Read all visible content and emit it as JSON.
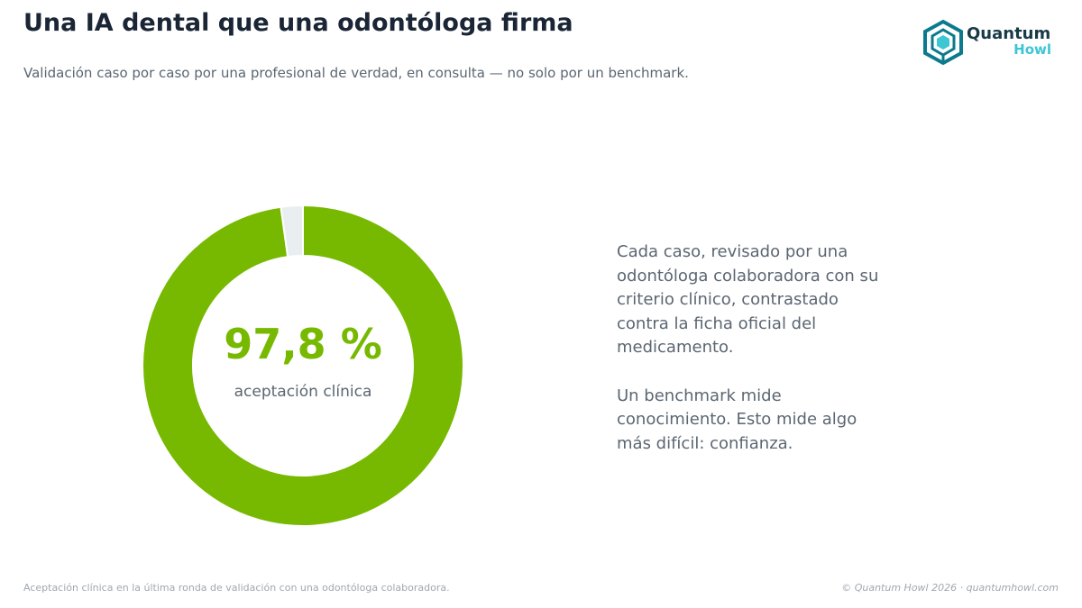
{
  "header": {
    "title": "Una IA dental que una odontóloga firma",
    "subtitle": "Validación caso por caso por una profesional de verdad, en consulta — no solo por un benchmark."
  },
  "logo": {
    "word_primary": "Quantum",
    "word_secondary": "Howl",
    "colors": {
      "dark": "#0b7a8c",
      "accent": "#3dc6d4",
      "text": "#173a47"
    }
  },
  "chart_data": {
    "type": "pie",
    "variant": "donut",
    "slices": [
      {
        "value": 97.8,
        "color": "#76b900"
      },
      {
        "value": 2.2,
        "color": "#e9eef1"
      }
    ],
    "center_value": "97,8 %",
    "center_label": "aceptación clínica"
  },
  "side": {
    "paragraph_1": "Cada caso, revisado por una odontóloga colaboradora con su criterio clínico, contrastado contra la ficha oficial del medicamento.",
    "paragraph_2": "Un benchmark mide conocimiento. Esto mide algo más difícil: confianza."
  },
  "footer": {
    "footnote": "Aceptación clínica en la última ronda de validación con una odontóloga colaboradora.",
    "credit": "© Quantum Howl 2026 · quantumhowl.com"
  }
}
